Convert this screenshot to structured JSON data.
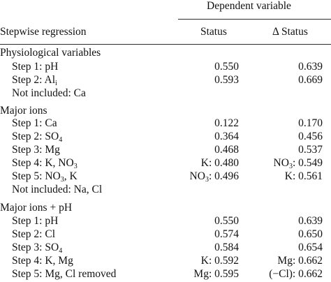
{
  "header": {
    "dependent_variable": "Dependent variable",
    "stepwise_regression": "Stepwise regression",
    "status": "Status",
    "delta_status": "Δ Status"
  },
  "sections": [
    {
      "title": "Physiological variables",
      "rows": [
        {
          "label": "Step 1: pH",
          "status": "0.550",
          "delta": "0.639"
        },
        {
          "label_main": "Step 2: Al",
          "label_sub": "i",
          "status": "0.593",
          "delta": "0.669"
        },
        {
          "label": "Not included: Ca",
          "status": "",
          "delta": ""
        }
      ]
    },
    {
      "title": "Major ions",
      "rows": [
        {
          "label": "Step 1: Ca",
          "status": "0.122",
          "delta": "0.170"
        },
        {
          "label_main": "Step 2: SO",
          "label_sub": "4",
          "status": "0.364",
          "delta": "0.456"
        },
        {
          "label": "Step 3: Mg",
          "status": "0.468",
          "delta": "0.537"
        },
        {
          "label_main": "Step 4: K, NO",
          "label_sub": "3",
          "status": "K: 0.480",
          "delta_main": "NO",
          "delta_sub": "3",
          "delta_tail": ": 0.549"
        },
        {
          "label_main": "Step 5: NO",
          "label_sub": "3",
          "label_tail": ", K",
          "status_main": "NO",
          "status_sub": "3",
          "status_tail": ": 0.496",
          "delta": "K: 0.561"
        },
        {
          "label": "Not included: Na, Cl",
          "status": "",
          "delta": ""
        }
      ]
    },
    {
      "title": "Major ions + pH",
      "rows": [
        {
          "label": "Step 1: pH",
          "status": "0.550",
          "delta": "0.639"
        },
        {
          "label": "Step 2: Cl",
          "status": "0.574",
          "delta": "0.650"
        },
        {
          "label_main": "Step 3: SO",
          "label_sub": "4",
          "status": "0.584",
          "delta": "0.654"
        },
        {
          "label": "Step 4: K, Mg",
          "status": "K: 0.592",
          "delta": "Mg: 0.662"
        },
        {
          "label": "Step 5: Mg, Cl removed",
          "status": "Mg: 0.595",
          "delta": "(−Cl): 0.662"
        }
      ]
    }
  ]
}
